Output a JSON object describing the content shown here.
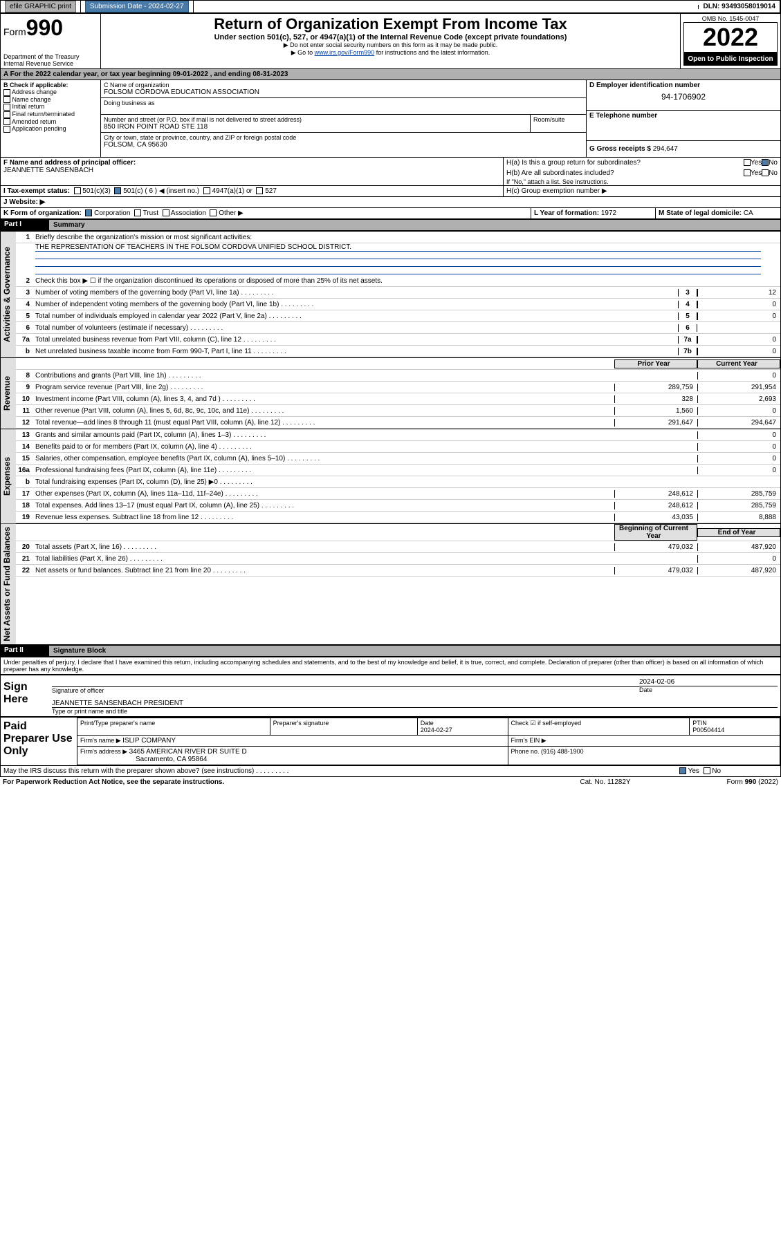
{
  "topbar": {
    "efile": "efile GRAPHIC print",
    "submit_label": "Submission Date - 2024-02-27",
    "dln": "DLN: 93493058019014"
  },
  "header": {
    "form_label": "Form",
    "form_num": "990",
    "dept": "Department of the Treasury\nInternal Revenue Service",
    "title": "Return of Organization Exempt From Income Tax",
    "subtitle": "Under section 501(c), 527, or 4947(a)(1) of the Internal Revenue Code (except private foundations)",
    "note1": "▶ Do not enter social security numbers on this form as it may be made public.",
    "note2_pre": "▶ Go to ",
    "note2_link": "www.irs.gov/Form990",
    "note2_post": " for instructions and the latest information.",
    "omb": "OMB No. 1545-0047",
    "year": "2022",
    "open": "Open to Public\nInspection"
  },
  "periodA": {
    "label": "A For the 2022 calendar year, or tax year beginning ",
    "begin": "09-01-2022",
    "mid": " , and ending ",
    "end": "08-31-2023"
  },
  "sectB": {
    "hdr": "B Check if applicable:",
    "items": [
      "Address change",
      "Name change",
      "Initial return",
      "Final return/terminated",
      "Amended return",
      "Application pending"
    ]
  },
  "sectC": {
    "name_lbl": "C Name of organization",
    "name": "FOLSOM CORDOVA EDUCATION ASSOCIATION",
    "dba_lbl": "Doing business as",
    "addr_lbl": "Number and street (or P.O. box if mail is not delivered to street address)",
    "room_lbl": "Room/suite",
    "addr": "850 IRON POINT ROAD STE 118",
    "city_lbl": "City or town, state or province, country, and ZIP or foreign postal code",
    "city": "FOLSOM, CA  95630"
  },
  "sectD": {
    "lbl": "D Employer identification number",
    "val": "94-1706902"
  },
  "sectE": {
    "lbl": "E Telephone number"
  },
  "sectG": {
    "lbl": "G Gross receipts $ ",
    "val": "294,647"
  },
  "sectF": {
    "lbl": "F Name and address of principal officer:",
    "val": "JEANNETTE SANSENBACH"
  },
  "sectH": {
    "ha": "H(a)  Is this a group return for subordinates?",
    "hb": "H(b)  Are all subordinates included?",
    "hb_note": "If \"No,\" attach a list. See instructions.",
    "hc": "H(c)  Group exemption number ▶",
    "yes": "Yes",
    "no": "No"
  },
  "sectI": {
    "lbl": "I   Tax-exempt status:",
    "c3": "501(c)(3)",
    "c": "501(c) ( 6 ) ◀ (insert no.)",
    "a1": "4947(a)(1) or",
    "s527": "527"
  },
  "sectJ": {
    "lbl": "J   Website: ▶"
  },
  "sectK": {
    "lbl": "K Form of organization:",
    "corp": "Corporation",
    "trust": "Trust",
    "assoc": "Association",
    "other": "Other ▶"
  },
  "sectL": {
    "lbl": "L Year of formation: ",
    "val": "1972"
  },
  "sectM": {
    "lbl": "M State of legal domicile: ",
    "val": "CA"
  },
  "part1": {
    "hdr": "Part I",
    "title": "Summary",
    "l1": "Briefly describe the organization's mission or most significant activities:",
    "mission": "THE REPRESENTATION OF TEACHERS IN THE FOLSOM CORDOVA UNIFIED SCHOOL DISTRICT.",
    "l2": "Check this box ▶ ☐  if the organization discontinued its operations or disposed of more than 25% of its net assets.",
    "prior": "Prior Year",
    "current": "Current Year",
    "beg": "Beginning of Current Year",
    "end": "End of Year"
  },
  "lines_gov": [
    {
      "n": "3",
      "t": "Number of voting members of the governing body (Part VI, line 1a)",
      "box": "3",
      "v": "12"
    },
    {
      "n": "4",
      "t": "Number of independent voting members of the governing body (Part VI, line 1b)",
      "box": "4",
      "v": "0"
    },
    {
      "n": "5",
      "t": "Total number of individuals employed in calendar year 2022 (Part V, line 2a)",
      "box": "5",
      "v": "0"
    },
    {
      "n": "6",
      "t": "Total number of volunteers (estimate if necessary)",
      "box": "6",
      "v": ""
    },
    {
      "n": "7a",
      "t": "Total unrelated business revenue from Part VIII, column (C), line 12",
      "box": "7a",
      "v": "0"
    },
    {
      "n": "b",
      "t": "Net unrelated business taxable income from Form 990-T, Part I, line 11",
      "box": "7b",
      "v": "0"
    }
  ],
  "lines_rev": [
    {
      "n": "8",
      "t": "Contributions and grants (Part VIII, line 1h)",
      "p": "",
      "c": "0"
    },
    {
      "n": "9",
      "t": "Program service revenue (Part VIII, line 2g)",
      "p": "289,759",
      "c": "291,954"
    },
    {
      "n": "10",
      "t": "Investment income (Part VIII, column (A), lines 3, 4, and 7d )",
      "p": "328",
      "c": "2,693"
    },
    {
      "n": "11",
      "t": "Other revenue (Part VIII, column (A), lines 5, 6d, 8c, 9c, 10c, and 11e)",
      "p": "1,560",
      "c": "0"
    },
    {
      "n": "12",
      "t": "Total revenue—add lines 8 through 11 (must equal Part VIII, column (A), line 12)",
      "p": "291,647",
      "c": "294,647"
    }
  ],
  "lines_exp": [
    {
      "n": "13",
      "t": "Grants and similar amounts paid (Part IX, column (A), lines 1–3)",
      "p": "",
      "c": "0"
    },
    {
      "n": "14",
      "t": "Benefits paid to or for members (Part IX, column (A), line 4)",
      "p": "",
      "c": "0"
    },
    {
      "n": "15",
      "t": "Salaries, other compensation, employee benefits (Part IX, column (A), lines 5–10)",
      "p": "",
      "c": "0"
    },
    {
      "n": "16a",
      "t": "Professional fundraising fees (Part IX, column (A), line 11e)",
      "p": "",
      "c": "0"
    },
    {
      "n": "b",
      "t": "Total fundraising expenses (Part IX, column (D), line 25) ▶0",
      "p": null,
      "c": null
    },
    {
      "n": "17",
      "t": "Other expenses (Part IX, column (A), lines 11a–11d, 11f–24e)",
      "p": "248,612",
      "c": "285,759"
    },
    {
      "n": "18",
      "t": "Total expenses. Add lines 13–17 (must equal Part IX, column (A), line 25)",
      "p": "248,612",
      "c": "285,759"
    },
    {
      "n": "19",
      "t": "Revenue less expenses. Subtract line 18 from line 12",
      "p": "43,035",
      "c": "8,888"
    }
  ],
  "lines_net": [
    {
      "n": "20",
      "t": "Total assets (Part X, line 16)",
      "p": "479,032",
      "c": "487,920"
    },
    {
      "n": "21",
      "t": "Total liabilities (Part X, line 26)",
      "p": "",
      "c": "0"
    },
    {
      "n": "22",
      "t": "Net assets or fund balances. Subtract line 21 from line 20",
      "p": "479,032",
      "c": "487,920"
    }
  ],
  "part2": {
    "hdr": "Part II",
    "title": "Signature Block",
    "decl": "Under penalties of perjury, I declare that I have examined this return, including accompanying schedules and statements, and to the best of my knowledge and belief, it is true, correct, and complete. Declaration of preparer (other than officer) is based on all information of which preparer has any knowledge."
  },
  "sign": {
    "lbl": "Sign Here",
    "sig_lbl": "Signature of officer",
    "date_lbl": "Date",
    "date": "2024-02-06",
    "name": "JEANNETTE SANSENBACH  PRESIDENT",
    "name_lbl": "Type or print name and title"
  },
  "paid": {
    "lbl": "Paid Preparer Use Only",
    "col1": "Print/Type preparer's name",
    "col2": "Preparer's signature",
    "col3": "Date",
    "date": "2024-02-27",
    "col4": "Check ☑ if self-employed",
    "col5": "PTIN",
    "ptin": "P00504414",
    "firm_lbl": "Firm's name    ▶ ",
    "firm": "ISLIP COMPANY",
    "ein_lbl": "Firm's EIN ▶",
    "addr_lbl": "Firm's address ▶ ",
    "addr1": "3465 AMERICAN RIVER DR SUITE D",
    "addr2": "Sacramento, CA  95864",
    "phone_lbl": "Phone no. ",
    "phone": "(916) 488-1900"
  },
  "footer": {
    "discuss": "May the IRS discuss this return with the preparer shown above? (see instructions)",
    "paperwork": "For Paperwork Reduction Act Notice, see the separate instructions.",
    "cat": "Cat. No. 11282Y",
    "form": "Form 990 (2022)"
  },
  "tabs": {
    "gov": "Activities & Governance",
    "rev": "Revenue",
    "exp": "Expenses",
    "net": "Net Assets or Fund Balances"
  }
}
